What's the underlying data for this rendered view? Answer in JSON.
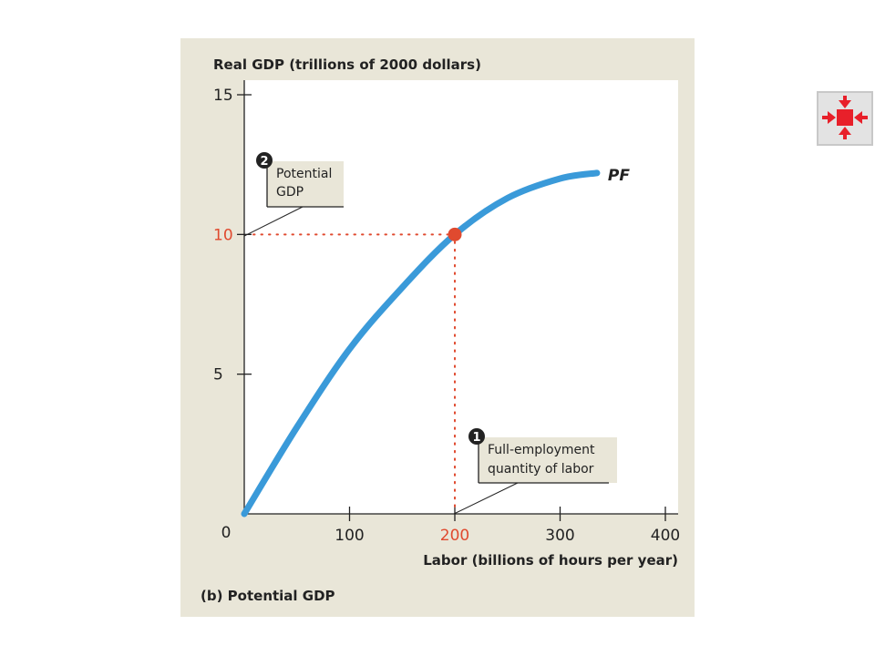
{
  "figure": {
    "caption": "(b) Potential GDP"
  },
  "chart_data": {
    "type": "line",
    "title": "",
    "ylabel": "Real GDP (trillions of 2000 dollars)",
    "xlabel": "Labor (billions of hours per year)",
    "xlim": [
      0,
      400
    ],
    "ylim": [
      0,
      15
    ],
    "x_ticks": [
      0,
      100,
      200,
      300,
      400
    ],
    "x_tick_labels": [
      "0",
      "100",
      "200",
      "300",
      "400"
    ],
    "y_ticks": [
      5,
      10,
      15
    ],
    "y_tick_labels": [
      "5",
      "10",
      "15"
    ],
    "grid": false,
    "series": [
      {
        "name": "PF",
        "color": "#3a9ad9",
        "x": [
          0,
          50,
          100,
          150,
          200,
          250,
          300,
          335
        ],
        "y": [
          0,
          3.1,
          5.9,
          8.1,
          10.0,
          11.3,
          12.0,
          12.2
        ]
      }
    ],
    "highlight_point": {
      "x": 200,
      "y": 10,
      "color": "#e04a2f"
    },
    "highlight_color": "#e04a2f",
    "annotations": [
      {
        "number": "1",
        "lines": [
          "Full-employment",
          "quantity of labor"
        ],
        "target": "x-axis at 200"
      },
      {
        "number": "2",
        "lines": [
          "Potential",
          "GDP"
        ],
        "target": "y-axis at 10"
      }
    ]
  },
  "nav_button": {
    "icon": "collapse-arrows-icon",
    "color": "#e8202a"
  }
}
